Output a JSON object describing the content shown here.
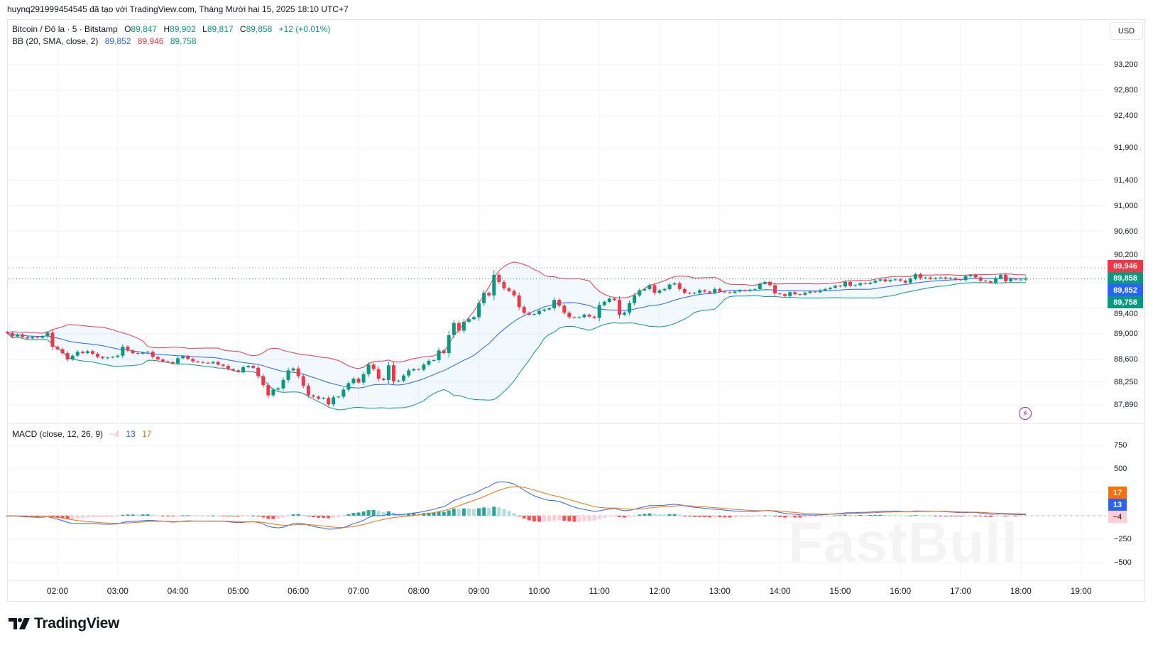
{
  "caption": "huynq291999454545 đã tạo với TradingView.com, Tháng Mười hai 15, 2025 18:10 UTC+7",
  "symbol": {
    "title": "Bitcoin / Đô la · 5 · Bitstamp",
    "o_label": "O",
    "open": "89,847",
    "h_label": "H",
    "high": "89,902",
    "l_label": "L",
    "low": "89,817",
    "c_label": "C",
    "close": "89,858",
    "change": "+12 (+0.01%)"
  },
  "bb": {
    "label": "BB (20, SMA, close, 2)",
    "basis": "89,852",
    "upper": "89,946",
    "lower": "89,758"
  },
  "macd": {
    "label": "MACD (close, 12, 26, 9)",
    "histogram": "−4",
    "macd": "13",
    "signal": "17"
  },
  "currency_button": "USD",
  "price_axis": [
    "93,200",
    "92,800",
    "92,400",
    "91,900",
    "91,400",
    "91,000",
    "90,600",
    "90,200",
    "89,400",
    "89,000",
    "88,600",
    "88,250",
    "87,890"
  ],
  "macd_axis": [
    "750",
    "500",
    "−250",
    "−500"
  ],
  "badges": {
    "upper": "89,946",
    "close": "89,858",
    "basis": "89,852",
    "lower": "89,758",
    "signal": "17",
    "macd": "13",
    "hist": "−4"
  },
  "time_axis": [
    "02:00",
    "03:00",
    "04:00",
    "05:00",
    "06:00",
    "07:00",
    "08:00",
    "09:00",
    "10:00",
    "11:00",
    "12:00",
    "13:00",
    "14:00",
    "15:00",
    "16:00",
    "17:00",
    "18:00",
    "19:00"
  ],
  "logo": "TradingView",
  "watermark": "FastBull",
  "colors": {
    "up": "#089981",
    "down": "#f23645",
    "bb_basis": "#2962ff",
    "bb_upper": "#f23645",
    "bb_lower": "#089981",
    "macd": "#2962ff",
    "signal": "#ff6d00"
  },
  "chart_data": {
    "type": "candlestick",
    "interval": "5",
    "first_candle": "01:10",
    "last_candle": {
      "open": 89847,
      "high": 89902,
      "low": 89817,
      "close": 89858
    },
    "closes": [
      89010,
      88960,
      88990,
      88950,
      88930,
      88950,
      88940,
      88960,
      89020,
      88800,
      88760,
      88700,
      88600,
      88660,
      88720,
      88700,
      88730,
      88690,
      88640,
      88620,
      88630,
      88640,
      88660,
      88800,
      88740,
      88700,
      88690,
      88710,
      88720,
      88640,
      88600,
      88570,
      88560,
      88540,
      88620,
      88650,
      88610,
      88570,
      88560,
      88550,
      88540,
      88560,
      88520,
      88500,
      88450,
      88430,
      88410,
      88480,
      88500,
      88470,
      88340,
      88200,
      88040,
      88130,
      88150,
      88280,
      88430,
      88460,
      88340,
      88190,
      88040,
      88020,
      87990,
      88000,
      87900,
      88010,
      88020,
      88130,
      88230,
      88300,
      88240,
      88370,
      88520,
      88450,
      88300,
      88280,
      88510,
      88260,
      88270,
      88350,
      88430,
      88450,
      88440,
      88520,
      88580,
      88590,
      88740,
      88700,
      88980,
      89170,
      89050,
      89190,
      89230,
      89260,
      89480,
      89640,
      89600,
      89920,
      89810,
      89710,
      89670,
      89600,
      89420,
      89330,
      89300,
      89310,
      89360,
      89380,
      89400,
      89530,
      89440,
      89330,
      89260,
      89250,
      89260,
      89300,
      89270,
      89250,
      89450,
      89500,
      89550,
      89530,
      89300,
      89330,
      89480,
      89600,
      89680,
      89700,
      89760,
      89640,
      89680,
      89700,
      89770,
      89790,
      89700,
      89640,
      89630,
      89640,
      89680,
      89660,
      89640,
      89700,
      89660,
      89650,
      89640,
      89660,
      89680,
      89670,
      89690,
      89700,
      89780,
      89810,
      89760,
      89630,
      89620,
      89590,
      89650,
      89620,
      89610,
      89640,
      89660,
      89650,
      89680,
      89700,
      89720,
      89750,
      89740,
      89810,
      89750,
      89760,
      89790,
      89780,
      89800,
      89830,
      89850,
      89820,
      89840,
      89850,
      89830,
      89800,
      89860,
      89930,
      89870,
      89880,
      89860,
      89870,
      89880,
      89860,
      89870,
      89850,
      89840,
      89900,
      89920,
      89880,
      89830,
      89820,
      89800,
      89870,
      89920,
      89820,
      89860,
      89847,
      89847,
      89858
    ]
  }
}
